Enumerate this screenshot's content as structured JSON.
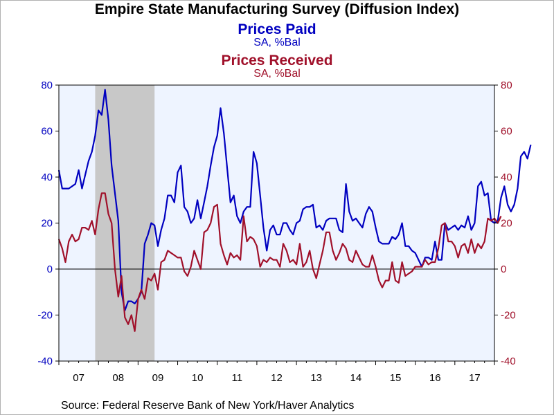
{
  "chart_data": {
    "type": "line",
    "title": "Empire State Manufacturing Survey (Diffusion Index)",
    "series_titles": [
      {
        "name": "Prices Paid",
        "unit": "SA, %Bal",
        "color": "#0000c0"
      },
      {
        "name": "Prices Received",
        "unit": "SA, %Bal",
        "color": "#a0102a"
      }
    ],
    "source": "Source:  Federal Reserve Bank of New York/Haver Analytics",
    "x_ticks": [
      "07",
      "08",
      "09",
      "10",
      "11",
      "12",
      "13",
      "14",
      "15",
      "16",
      "17"
    ],
    "x_range": [
      2007.0,
      2018.0
    ],
    "y_left": {
      "range": [
        -40,
        80
      ],
      "ticks": [
        80,
        60,
        40,
        20,
        0,
        -20,
        -40
      ],
      "color": "#0000c0"
    },
    "y_right": {
      "range": [
        -40,
        80
      ],
      "ticks": [
        80,
        60,
        40,
        20,
        0,
        -20,
        -40
      ],
      "color": "#a0102a"
    },
    "recession": {
      "start": 2007.917,
      "end": 2009.417,
      "color": "#c8c8c8"
    },
    "plot_background": "#eef4ff",
    "zero_line": true,
    "series": [
      {
        "name": "Prices Paid",
        "color": "#0000c0",
        "start": 2007.0,
        "values": [
          43,
          35,
          35,
          35,
          36,
          37,
          43,
          35,
          41,
          47,
          51,
          58,
          69,
          67,
          78,
          65,
          45,
          33,
          21,
          -10,
          -18,
          -14,
          -14,
          -15,
          -13,
          -10,
          11,
          15,
          20,
          19,
          10,
          17,
          22,
          32,
          32,
          29,
          42,
          45,
          27,
          25,
          20,
          22,
          30,
          22,
          29,
          36,
          45,
          53,
          58,
          70,
          59,
          44,
          29,
          32,
          23,
          20,
          25,
          27,
          27,
          51,
          46,
          32,
          18,
          8,
          17,
          19,
          15,
          15,
          20,
          20,
          17,
          15,
          20,
          21,
          26,
          27,
          27,
          28,
          18,
          19,
          17,
          21,
          22,
          22,
          22,
          17,
          16,
          37,
          25,
          21,
          22,
          20,
          18,
          24,
          27,
          25,
          18,
          12,
          11,
          11,
          11,
          14,
          13,
          15,
          20,
          10,
          10,
          8,
          7,
          4,
          1,
          5,
          5,
          4,
          12,
          4,
          4,
          20,
          17,
          18,
          19,
          17,
          19,
          18,
          23,
          17,
          20,
          36,
          38,
          32,
          33,
          21,
          20,
          21,
          31,
          36,
          28,
          25,
          28,
          35,
          49,
          51,
          48,
          54
        ]
      },
      {
        "name": "Prices Received",
        "color": "#a0102a",
        "start": 2007.0,
        "values": [
          13,
          9,
          3,
          12,
          15,
          12,
          13,
          18,
          18,
          17,
          21,
          15,
          26,
          33,
          33,
          24,
          20,
          0,
          -12,
          -3,
          -21,
          -24,
          -20,
          -27,
          -13,
          -9,
          -13,
          -4,
          -5,
          -2,
          -9,
          3,
          4,
          8,
          7,
          6,
          5,
          5,
          -1,
          -3,
          1,
          8,
          4,
          0,
          16,
          17,
          20,
          27,
          28,
          11,
          6,
          2,
          7,
          5,
          6,
          4,
          23,
          12,
          14,
          13,
          10,
          1,
          4,
          3,
          5,
          4,
          4,
          1,
          11,
          8,
          3,
          4,
          2,
          11,
          1,
          3,
          8,
          0,
          -4,
          2,
          8,
          16,
          16,
          8,
          4,
          7,
          11,
          9,
          4,
          3,
          8,
          5,
          2,
          1,
          1,
          6,
          1,
          -5,
          -8,
          -5,
          -5,
          3,
          -5,
          -6,
          3,
          -3,
          -2,
          -1,
          1,
          1,
          1,
          4,
          2,
          3,
          3,
          9,
          19,
          20,
          12,
          12,
          10,
          5,
          10,
          11,
          7,
          13,
          7,
          11,
          9,
          12,
          22,
          21,
          22,
          20,
          23
        ]
      }
    ]
  }
}
